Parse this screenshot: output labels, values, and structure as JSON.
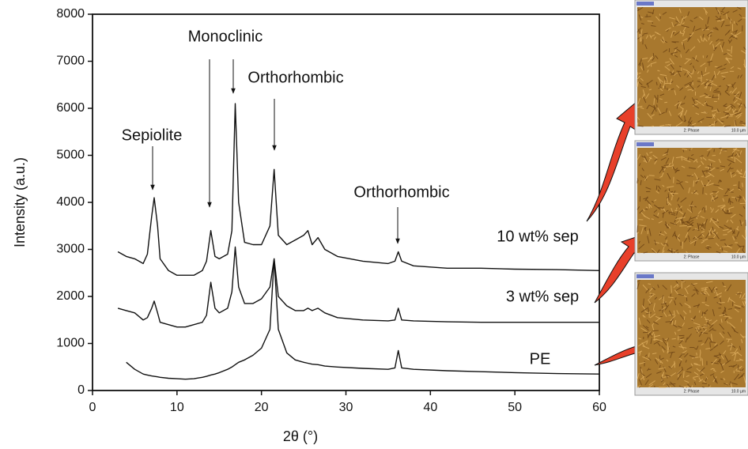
{
  "chart_data": {
    "type": "line",
    "xlabel": "2θ (°)",
    "ylabel": "Intensity (a.u.)",
    "x": [
      3,
      4,
      5,
      6,
      6.5,
      7,
      7.3,
      7.7,
      8,
      9,
      10,
      11,
      12,
      13,
      13.5,
      14,
      14.5,
      15,
      16,
      16.5,
      16.9,
      17.3,
      18,
      19,
      20,
      21,
      21.5,
      22,
      23,
      24,
      25,
      25.5,
      26,
      26.7,
      27.5,
      29,
      32,
      35,
      35.8,
      36.2,
      36.6,
      38,
      42,
      46,
      50,
      55,
      60
    ],
    "series": [
      {
        "name": "10 wt% sep",
        "color": "#111111",
        "values": [
          2950,
          2850,
          2800,
          2700,
          2900,
          3700,
          4100,
          3500,
          2800,
          2550,
          2450,
          2450,
          2450,
          2550,
          2750,
          3400,
          2850,
          2800,
          2900,
          3400,
          6100,
          4000,
          3150,
          3100,
          3100,
          3500,
          4700,
          3300,
          3100,
          3200,
          3300,
          3400,
          3100,
          3250,
          3000,
          2850,
          2750,
          2700,
          2750,
          2950,
          2750,
          2650,
          2600,
          2600,
          2580,
          2570,
          2550
        ]
      },
      {
        "name": "3 wt% sep",
        "color": "#111111",
        "values": [
          1750,
          1700,
          1650,
          1500,
          1550,
          1750,
          1900,
          1650,
          1450,
          1400,
          1350,
          1350,
          1400,
          1450,
          1600,
          2300,
          1750,
          1650,
          1750,
          2100,
          3050,
          2200,
          1850,
          1850,
          1950,
          2200,
          2800,
          2000,
          1800,
          1700,
          1700,
          1750,
          1700,
          1750,
          1650,
          1550,
          1500,
          1480,
          1500,
          1750,
          1500,
          1480,
          1460,
          1450,
          1450,
          1450,
          1450
        ]
      },
      {
        "name": "PE",
        "color": "#111111",
        "values": [
          null,
          600,
          450,
          350,
          330,
          310,
          300,
          290,
          280,
          260,
          250,
          240,
          250,
          280,
          300,
          330,
          350,
          380,
          450,
          500,
          550,
          600,
          650,
          750,
          900,
          1300,
          2800,
          1300,
          800,
          650,
          600,
          580,
          560,
          550,
          520,
          500,
          470,
          450,
          480,
          850,
          480,
          450,
          420,
          400,
          380,
          360,
          350
        ]
      }
    ],
    "xlim": [
      0,
      60
    ],
    "xticks": [
      0,
      10,
      20,
      30,
      40,
      50,
      60
    ],
    "ylim": [
      0,
      8000
    ],
    "yticks": [
      0,
      1000,
      2000,
      3000,
      4000,
      5000,
      6000,
      7000,
      8000
    ],
    "grid": false,
    "annotations": [
      "Sepiolite",
      "Monoclinic",
      "Orthorhombic",
      "Orthorhombic"
    ]
  },
  "afm_panels": [
    {
      "label": "2: Phase",
      "scale": "10.0 µm"
    },
    {
      "label": "2: Phase",
      "scale": "10.0 µm"
    },
    {
      "label": "2: Phase",
      "scale": "10.0 µm"
    }
  ]
}
